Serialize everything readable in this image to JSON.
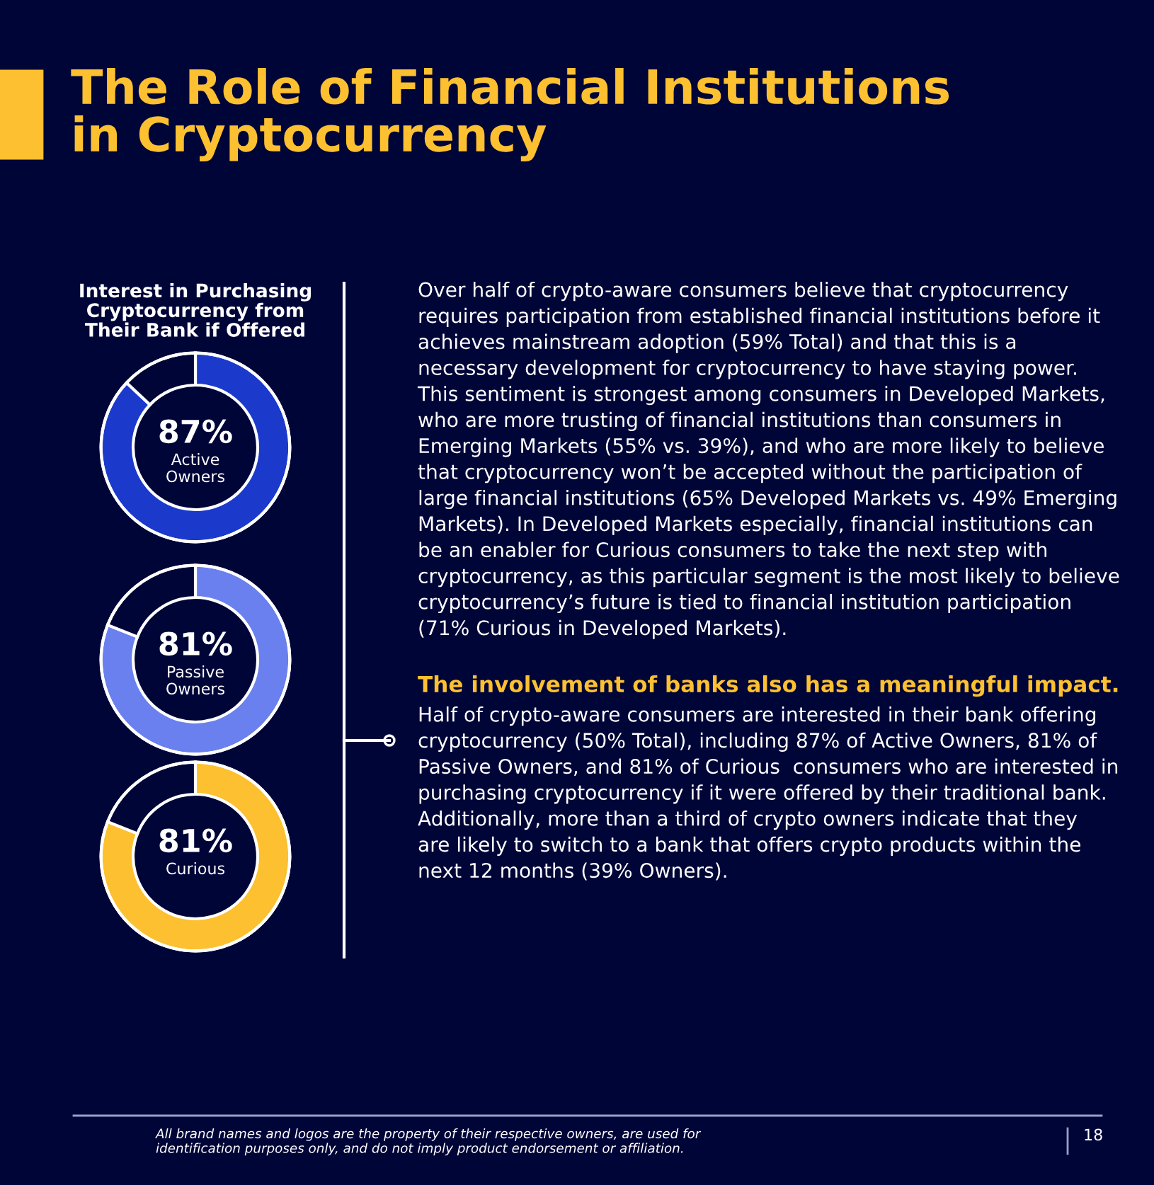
{
  "chart_data": [
    {
      "type": "other",
      "title": "The Role of Financial Institutions\nin Cryptocurrency",
      "annotations": [
        "Over half of crypto-aware consumers believe that cryptocurrency\nrequires participation from established financial institutions before it\nachieves mainstream adoption (59% Total) and that this is a\nnecessary development for cryptocurrency to have staying power.\nThis sentiment is strongest among consumers in Developed Markets,\nwho are more trusting of financial institutions than consumers in\nEmerging Markets (55% vs. 39%), and who are more likely to believe\nthat cryptocurrency won’t be accepted without the participation of\nlarge financial institutions (65% Developed Markets vs. 49% Emerging\nMarkets). In Developed Markets especially, financial institutions can\nbe an enabler for Curious consumers to take the next step with\ncryptocurrency, as this particular segment is the most likely to believe\ncryptocurrency’s future is tied to financial institution participation\n(71% Curious in Developed Markets).",
        "The involvement of banks also has a meaningful impact.",
        "Half of crypto-aware consumers are interested in their bank offering\ncryptocurrency (50% Total), including 87% of Active Owners, 81% of\nPassive Owners, and 81% of Curious  consumers who are interested in\npurchasing cryptocurrency if it were offered by their traditional bank.\nAdditionally, more than a third of crypto owners indicate that they\nare likely to switch to a bank that offers crypto products within the\nnext 12 months (39% Owners).",
        "All brand names and logos are the property of their respective owners, are used for\nidentification purposes only, and do not imply product endorsement or affiliation.",
        "18"
      ]
    },
    {
      "type": "donut",
      "title": "Interest in Purchasing\nCryptocurrency from\nTheir Bank if Offered",
      "categories": [
        "Active\nOwners",
        null
      ],
      "values": [
        87,
        13
      ],
      "colors": [
        "#1b3acc",
        "#000538"
      ],
      "value_labels": [
        "87%",
        null
      ]
    },
    {
      "type": "donut",
      "categories": [
        "Passive\nOwners",
        null
      ],
      "values": [
        81,
        19
      ],
      "colors": [
        "#6a80ee",
        "#000538"
      ],
      "value_labels": [
        "81%",
        null
      ]
    },
    {
      "type": "donut",
      "categories": [
        "Curious",
        null
      ],
      "values": [
        81,
        19
      ],
      "colors": [
        "#fcc030",
        "#000538"
      ],
      "value_labels": [
        "81%",
        null
      ]
    }
  ]
}
